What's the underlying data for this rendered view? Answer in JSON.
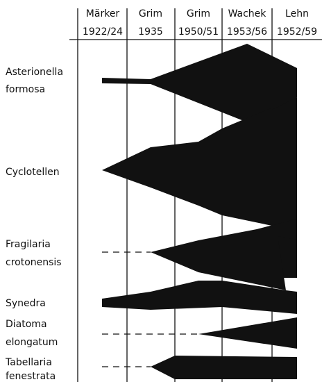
{
  "columns": [
    {
      "author": "Märker",
      "years": "1922/24"
    },
    {
      "author": "Grim",
      "years": "1935"
    },
    {
      "author": "Grim",
      "years": "1950/51"
    },
    {
      "author": "Wachek",
      "years": "1953/56"
    },
    {
      "author": "Lehn",
      "years": "1952/59"
    }
  ],
  "species": [
    {
      "lines": [
        "Asterionella",
        "formosa"
      ]
    },
    {
      "lines": [
        "Cyclotellen"
      ]
    },
    {
      "lines": [
        "Fragilaria",
        "crotonensis"
      ]
    },
    {
      "lines": [
        "Synedra"
      ]
    },
    {
      "lines": [
        "Diatoma",
        "elongatum"
      ]
    },
    {
      "lines": [
        "Tabellaria",
        "fenestrata"
      ]
    }
  ]
}
